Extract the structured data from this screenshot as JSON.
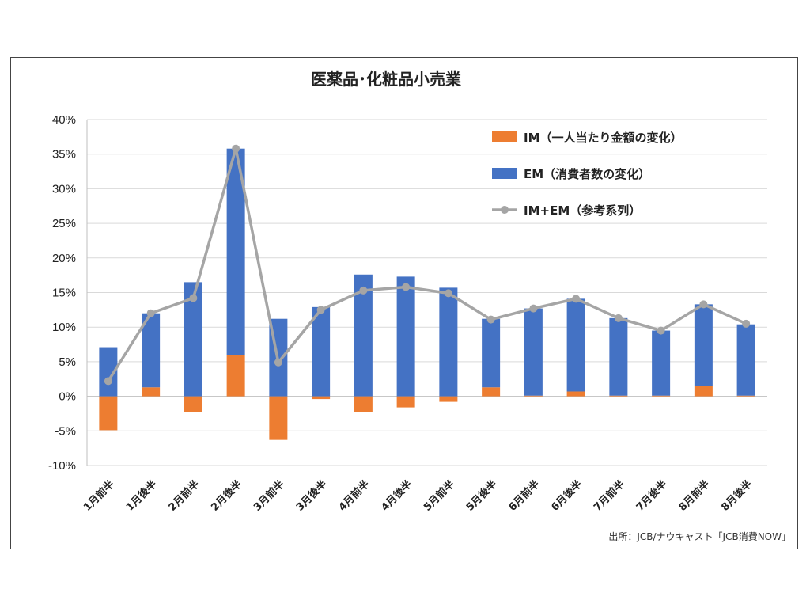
{
  "colors": {
    "im": "#ED7D31",
    "em": "#4472C4",
    "total": "#A5A5A5",
    "grid": "#D9D9D9",
    "axis": "#BFBFBF"
  },
  "source_note": "出所：JCB/ナウキャスト「JCB消費NOW」",
  "chart_data": {
    "type": "bar",
    "stacked": true,
    "title": "医薬品･化粧品小売業",
    "xlabel": "",
    "ylabel": "",
    "ylim": [
      -0.1,
      0.4
    ],
    "yticks": [
      -0.1,
      -0.05,
      0.0,
      0.05,
      0.1,
      0.15,
      0.2,
      0.25,
      0.3,
      0.35,
      0.4
    ],
    "ytick_labels": [
      "-10%",
      "-5%",
      "0%",
      "5%",
      "10%",
      "15%",
      "20%",
      "25%",
      "30%",
      "35%",
      "40%"
    ],
    "grid": true,
    "legend_position": "top-right",
    "categories": [
      "1月前半",
      "1月後半",
      "2月前半",
      "2月後半",
      "3月前半",
      "3月後半",
      "4月前半",
      "4月後半",
      "5月前半",
      "5月後半",
      "6月前半",
      "6月後半",
      "7月前半",
      "7月後半",
      "8月前半",
      "8月後半"
    ],
    "series": [
      {
        "name": "IM（一人当たり金額の変化）",
        "type": "bar",
        "values": [
          -0.049,
          0.013,
          -0.023,
          0.06,
          -0.063,
          -0.004,
          -0.023,
          -0.016,
          -0.008,
          0.013,
          0.001,
          0.007,
          0.001,
          0.001,
          0.015,
          0.001
        ]
      },
      {
        "name": "EM（消費者数の変化）",
        "type": "bar",
        "values": [
          0.071,
          0.107,
          0.165,
          0.298,
          0.112,
          0.129,
          0.176,
          0.173,
          0.157,
          0.099,
          0.126,
          0.134,
          0.112,
          0.094,
          0.118,
          0.103
        ]
      },
      {
        "name": "IM+EM（参考系列）",
        "type": "line",
        "values": [
          0.022,
          0.12,
          0.142,
          0.358,
          0.049,
          0.125,
          0.153,
          0.158,
          0.149,
          0.111,
          0.127,
          0.141,
          0.113,
          0.095,
          0.133,
          0.105
        ]
      }
    ]
  }
}
